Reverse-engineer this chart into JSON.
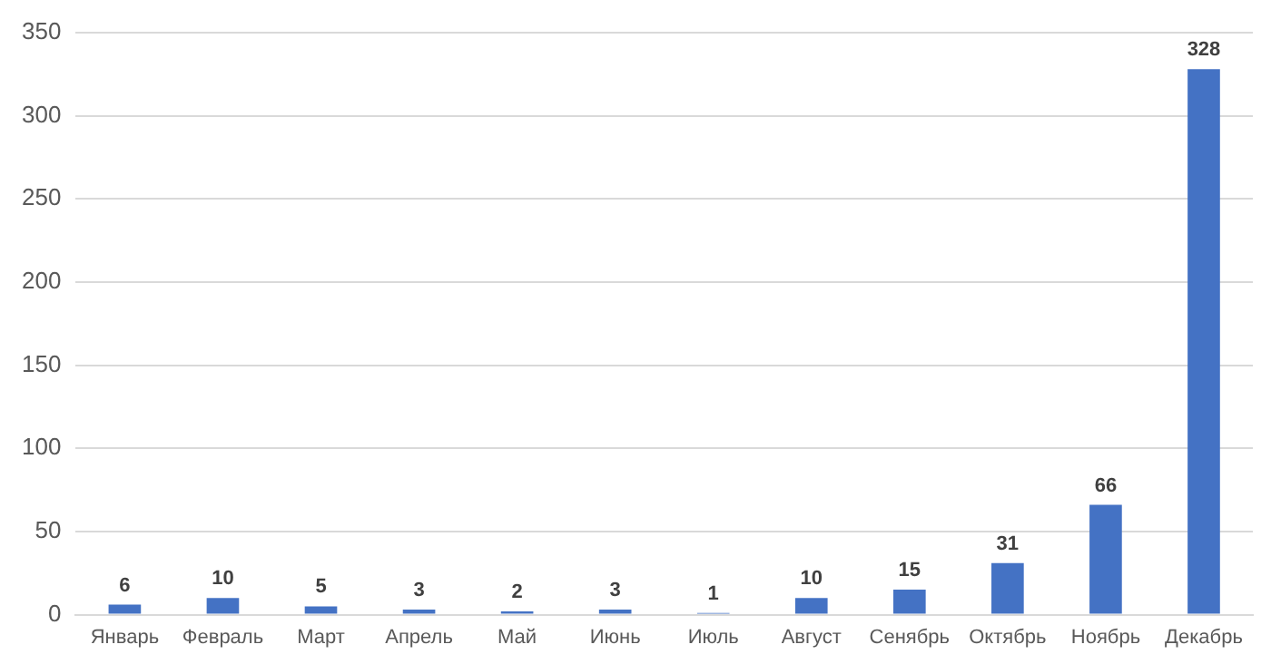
{
  "chart_data": {
    "type": "bar",
    "categories": [
      "Январь",
      "Февраль",
      "Март",
      "Апрель",
      "Май",
      "Июнь",
      "Июль",
      "Август",
      "Сенябрь",
      "Октябрь",
      "Ноябрь",
      "Декабрь"
    ],
    "values": [
      6,
      10,
      5,
      3,
      2,
      3,
      1,
      10,
      15,
      31,
      66,
      328
    ],
    "color": "#4472c4",
    "ylim": [
      0,
      350
    ],
    "yticks": [
      0,
      50,
      100,
      150,
      200,
      250,
      300,
      350
    ],
    "grid": "y",
    "data_labels": true
  }
}
